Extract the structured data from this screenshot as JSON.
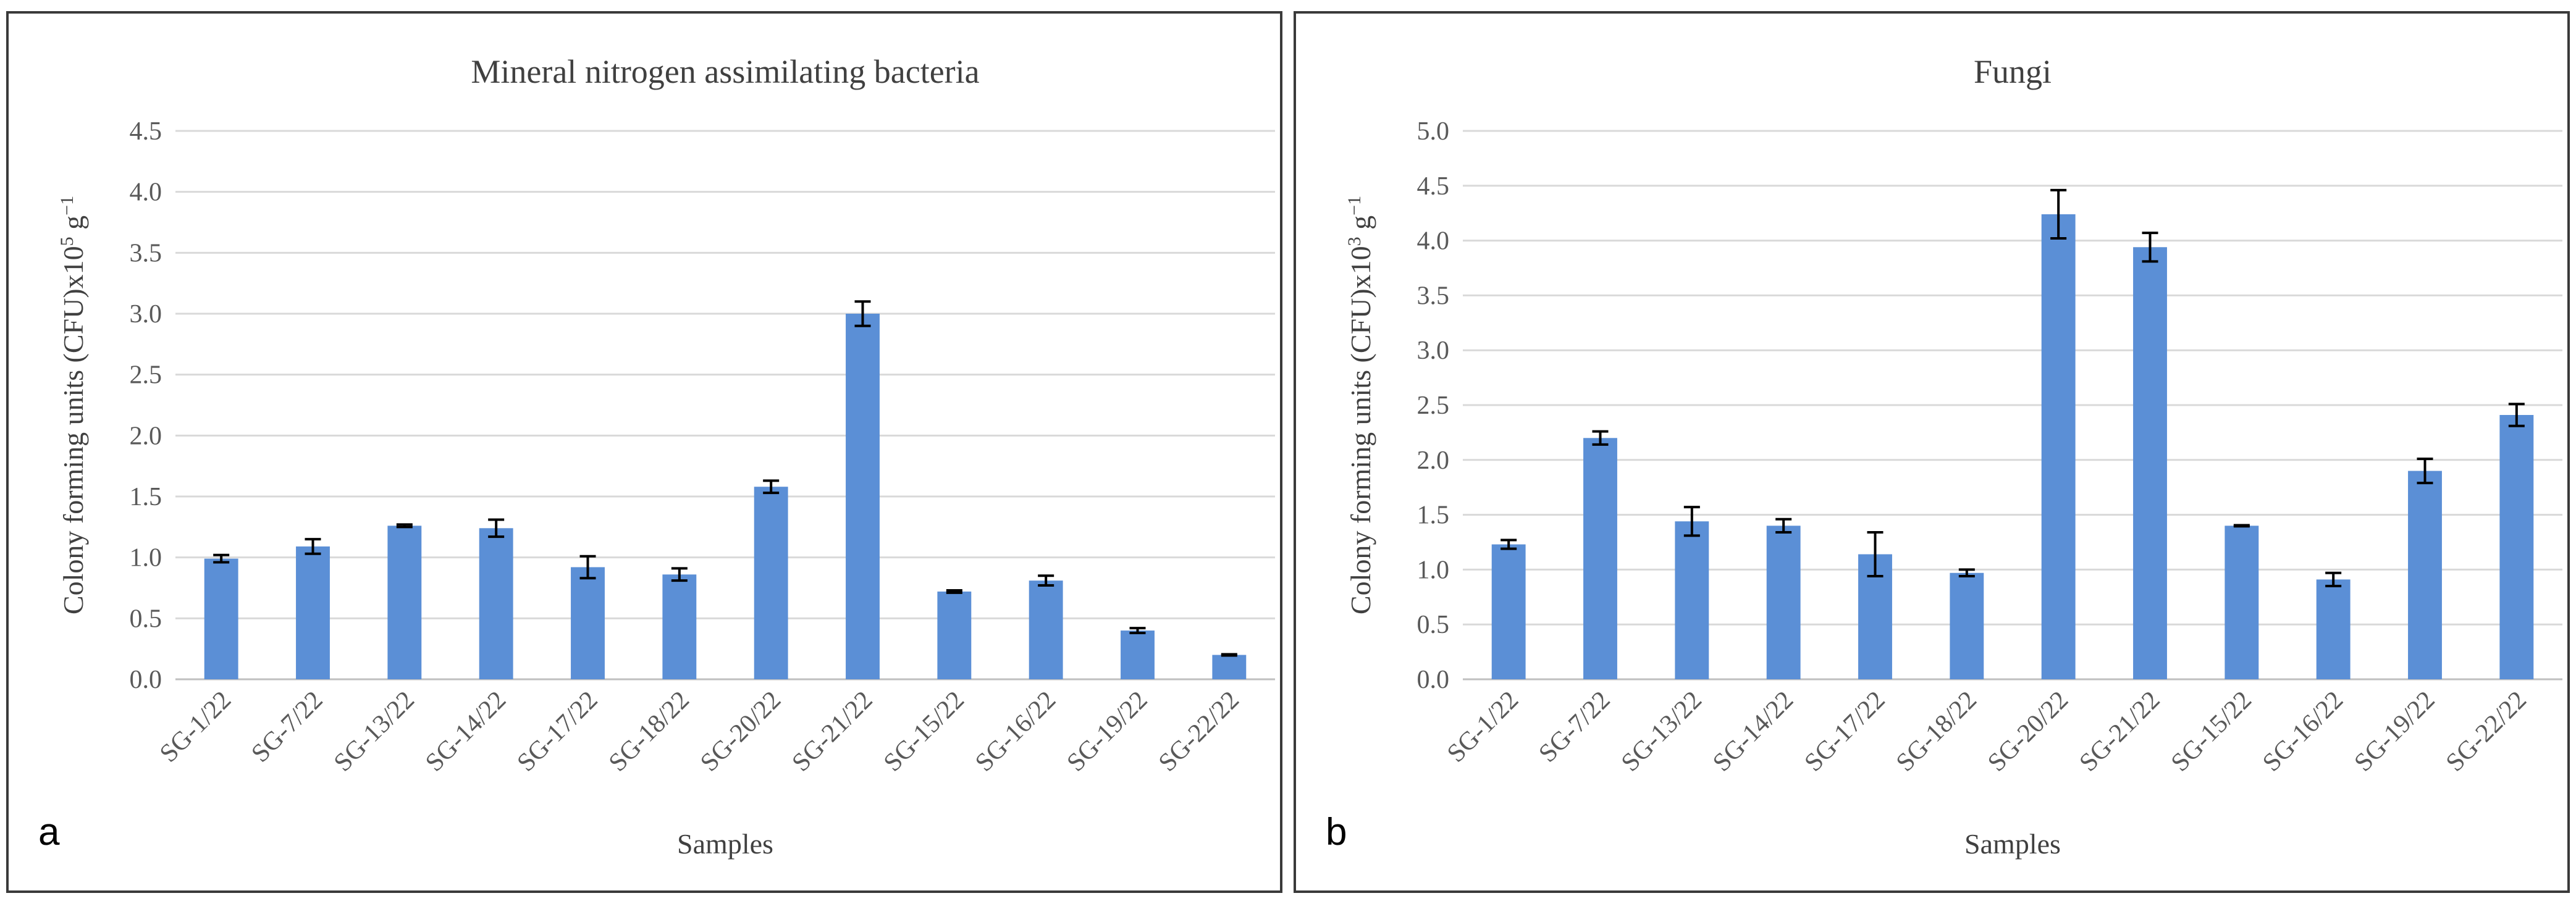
{
  "chart_data": [
    {
      "panel": "a",
      "type": "bar",
      "title": "Mineral nitrogen assimilating bacteria",
      "xlabel": "Samples",
      "ylabel_prefix": "Colony forming units (CFU)x10",
      "ylabel_exp": "5",
      "ylabel_unit": " g",
      "ylabel_unit_exp": "−1",
      "ylim": [
        0,
        4.5
      ],
      "yticks": [
        "0.0",
        "0.5",
        "1.0",
        "1.5",
        "2.0",
        "2.5",
        "3.0",
        "3.5",
        "4.0",
        "4.5"
      ],
      "grid": true,
      "categories": [
        "SG-1/22",
        "SG-7/22",
        "SG-13/22",
        "SG-14/22",
        "SG-17/22",
        "SG-18/22",
        "SG-20/22",
        "SG-21/22",
        "SG-15/22",
        "SG-16/22",
        "SG-19/22",
        "SG-22/22"
      ],
      "values": [
        0.99,
        1.09,
        1.26,
        1.24,
        0.92,
        0.86,
        1.58,
        3.0,
        0.72,
        0.81,
        0.4,
        0.2
      ],
      "errors": [
        0.03,
        0.06,
        0.01,
        0.07,
        0.09,
        0.05,
        0.05,
        0.1,
        0.01,
        0.04,
        0.02,
        0.005
      ]
    },
    {
      "panel": "b",
      "type": "bar",
      "title": "Fungi",
      "xlabel": "Samples",
      "ylabel_prefix": "Colony forming units (CFU)x10",
      "ylabel_exp": "3",
      "ylabel_unit": " g",
      "ylabel_unit_exp": "−1",
      "ylim": [
        0,
        5.0
      ],
      "yticks": [
        "0.0",
        "0.5",
        "1.0",
        "1.5",
        "2.0",
        "2.5",
        "3.0",
        "3.5",
        "4.0",
        "4.5",
        "5.0"
      ],
      "grid": true,
      "categories": [
        "SG-1/22",
        "SG-7/22",
        "SG-13/22",
        "SG-14/22",
        "SG-17/22",
        "SG-18/22",
        "SG-20/22",
        "SG-21/22",
        "SG-15/22",
        "SG-16/22",
        "SG-19/22",
        "SG-22/22"
      ],
      "values": [
        1.23,
        2.2,
        1.44,
        1.4,
        1.14,
        0.97,
        4.24,
        3.94,
        1.4,
        0.91,
        1.9,
        2.41
      ],
      "errors": [
        0.04,
        0.06,
        0.13,
        0.06,
        0.2,
        0.03,
        0.22,
        0.13,
        0.005,
        0.06,
        0.11,
        0.1
      ]
    }
  ],
  "panels": {
    "a": "a",
    "b": "b"
  }
}
